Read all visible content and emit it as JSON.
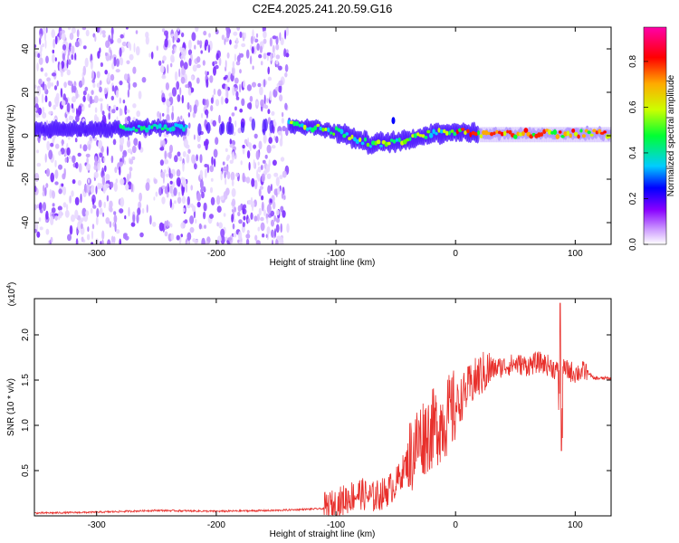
{
  "chart_data": [
    {
      "type": "heatmap",
      "title": "C2E4.2025.241.20.59.G16",
      "xlabel": "Height of straight line (km)",
      "ylabel": "Frequency (Hz)",
      "xlim": [
        -352,
        130
      ],
      "ylim": [
        -50,
        50
      ],
      "xticks": [
        -300,
        -200,
        -100,
        0,
        100
      ],
      "yticks": [
        -40,
        -20,
        0,
        20,
        40
      ],
      "colorbar": {
        "label": "Normalized spectral amplitude",
        "range": [
          0.0,
          0.95
        ],
        "ticks": [
          0.0,
          0.2,
          0.4,
          0.6,
          0.8
        ],
        "tick_labels": [
          "0.0",
          "0.2",
          "0.4",
          "0.6",
          "0.8"
        ],
        "colors": [
          "#ffffff",
          "#cc99ff",
          "#8800ff",
          "#0000ff",
          "#00ccff",
          "#00ff33",
          "#ccff00",
          "#ffaa00",
          "#ff0000",
          "#ff00aa"
        ]
      },
      "noise_region_x": [
        -352,
        -140
      ],
      "signal_track": {
        "x": [
          -280,
          -260,
          -240,
          -225,
          -140,
          -120,
          -100,
          -80,
          -70,
          -60,
          -50,
          -40,
          -20,
          0,
          20,
          50,
          80,
          100,
          130
        ],
        "freq": [
          3,
          4,
          4,
          3,
          5,
          4,
          2,
          -2,
          -4,
          -3,
          -3,
          -2,
          1,
          2,
          1,
          1,
          1,
          1,
          1
        ]
      }
    },
    {
      "type": "line",
      "xlabel": "Height of straight line (km)",
      "ylabel": "SNR (10 * v/v)",
      "y_scale_label": "(x10",
      "y_scale_exponent": "4",
      "xlim": [
        -352,
        130
      ],
      "ylim": [
        0,
        2.4
      ],
      "xticks": [
        -300,
        -200,
        -100,
        0,
        100
      ],
      "yticks": [
        0.5,
        1.0,
        1.5,
        2.0
      ],
      "ytick_labels": [
        "0.5",
        "1.0",
        "1.5",
        "2.0"
      ],
      "series": [
        {
          "name": "SNR",
          "color": "#e8302c",
          "x": [
            -352,
            -300,
            -250,
            -200,
            -150,
            -110,
            -100,
            -90,
            -80,
            -70,
            -60,
            -50,
            -40,
            -30,
            -20,
            -10,
            0,
            10,
            20,
            30,
            40,
            50,
            60,
            70,
            80,
            85,
            88,
            90,
            95,
            100,
            110,
            115,
            120,
            130
          ],
          "y": [
            0.03,
            0.04,
            0.06,
            0.05,
            0.06,
            0.08,
            0.12,
            0.2,
            0.25,
            0.2,
            0.25,
            0.35,
            0.6,
            0.85,
            0.95,
            1.05,
            1.2,
            1.4,
            1.55,
            1.62,
            1.65,
            1.68,
            1.66,
            1.7,
            1.65,
            1.6,
            1.45,
            1.62,
            1.6,
            1.58,
            1.6,
            1.52,
            1.52,
            1.52
          ]
        }
      ]
    }
  ]
}
